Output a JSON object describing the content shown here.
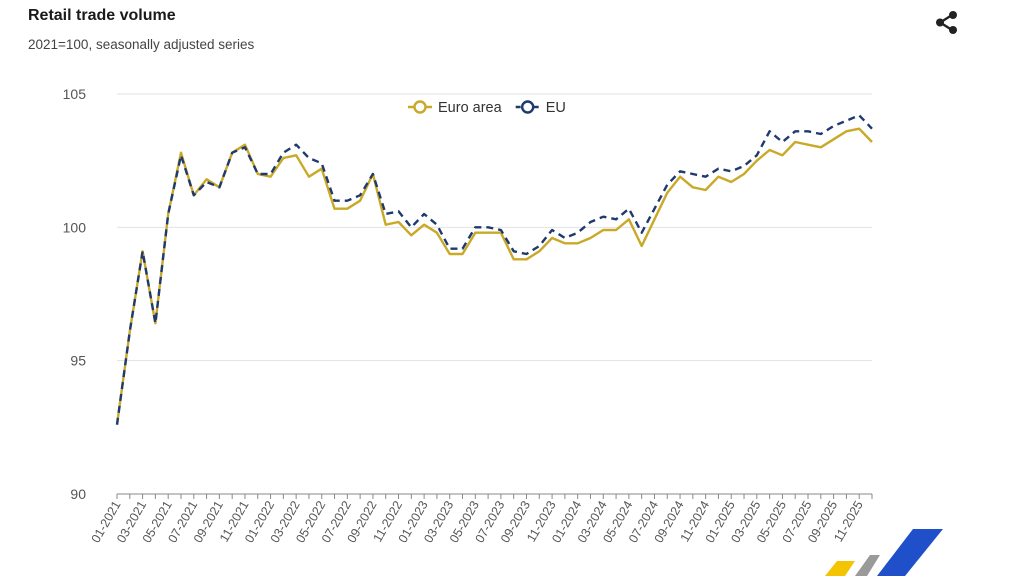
{
  "header": {
    "title": "Retail trade volume",
    "subtitle": "2021=100, seasonally adjusted series",
    "share_icon": "share-icon"
  },
  "chart_data": {
    "type": "line",
    "title": "Retail trade volume",
    "subtitle": "2021=100, seasonally adjusted series",
    "xlabel": "",
    "ylabel": "",
    "ylim": [
      90,
      105
    ],
    "yticks": [
      90,
      95,
      100,
      105
    ],
    "grid": true,
    "legend": "top-center",
    "x": [
      "01-2021",
      "02-2021",
      "03-2021",
      "04-2021",
      "05-2021",
      "06-2021",
      "07-2021",
      "08-2021",
      "09-2021",
      "10-2021",
      "11-2021",
      "12-2021",
      "01-2022",
      "02-2022",
      "03-2022",
      "04-2022",
      "05-2022",
      "06-2022",
      "07-2022",
      "08-2022",
      "09-2022",
      "10-2022",
      "11-2022",
      "12-2022",
      "01-2023",
      "02-2023",
      "03-2023",
      "04-2023",
      "05-2023",
      "06-2023",
      "07-2023",
      "08-2023",
      "09-2023",
      "10-2023",
      "11-2023",
      "12-2023",
      "01-2024",
      "02-2024",
      "03-2024",
      "04-2024",
      "05-2024",
      "06-2024",
      "07-2024",
      "08-2024",
      "09-2024",
      "10-2024",
      "11-2024",
      "12-2024",
      "01-2025",
      "02-2025",
      "03-2025",
      "04-2025",
      "05-2025",
      "06-2025",
      "07-2025",
      "08-2025",
      "09-2025",
      "10-2025",
      "11-2025",
      "12-2025"
    ],
    "series": [
      {
        "name": "Euro area",
        "color": "#c9a927",
        "style": "solid",
        "values": [
          92.6,
          96.1,
          99.1,
          96.4,
          100.5,
          102.8,
          101.2,
          101.8,
          101.5,
          102.8,
          103.1,
          102.0,
          101.9,
          102.6,
          102.7,
          101.9,
          102.2,
          100.7,
          100.7,
          101.0,
          102.0,
          100.1,
          100.2,
          99.7,
          100.1,
          99.8,
          99.0,
          99.0,
          99.8,
          99.8,
          99.8,
          98.8,
          98.8,
          99.1,
          99.6,
          99.4,
          99.4,
          99.6,
          99.9,
          99.9,
          100.3,
          99.3,
          100.3,
          101.3,
          101.9,
          101.5,
          101.4,
          101.9,
          101.7,
          102.0,
          102.5,
          102.9,
          102.7,
          103.2,
          103.1,
          103.0,
          103.3,
          103.6,
          103.7,
          103.2
        ]
      },
      {
        "name": "EU",
        "color": "#1f3a6e",
        "style": "dashed",
        "values": [
          92.6,
          96.1,
          99.1,
          96.4,
          100.5,
          102.7,
          101.2,
          101.7,
          101.5,
          102.8,
          103.0,
          102.0,
          102.0,
          102.8,
          103.1,
          102.6,
          102.4,
          101.0,
          101.0,
          101.2,
          102.0,
          100.5,
          100.6,
          100.0,
          100.5,
          100.1,
          99.2,
          99.2,
          100.0,
          100.0,
          99.9,
          99.1,
          99.0,
          99.3,
          99.9,
          99.6,
          99.8,
          100.2,
          100.4,
          100.3,
          100.7,
          99.8,
          100.7,
          101.6,
          102.1,
          102.0,
          101.9,
          102.2,
          102.1,
          102.3,
          102.7,
          103.6,
          103.2,
          103.6,
          103.6,
          103.5,
          103.8,
          104.0,
          104.2,
          103.7
        ]
      }
    ]
  }
}
